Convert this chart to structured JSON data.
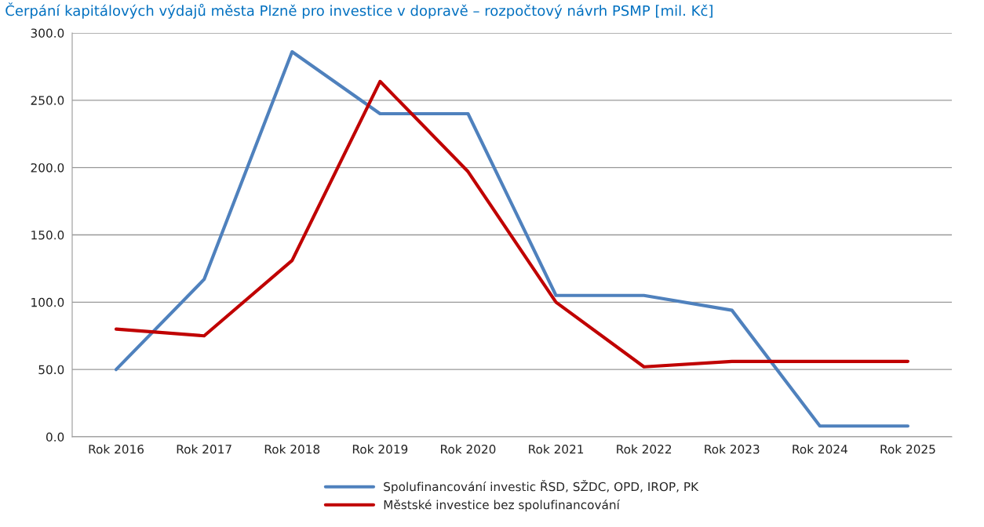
{
  "chart_data": {
    "type": "line",
    "title": "Čerpání kapitálových výdajů města Plzně pro investice v dopravě – rozpočtový návrh PSMP [mil. Kč]",
    "categories": [
      "Rok 2016",
      "Rok 2017",
      "Rok 2018",
      "Rok 2019",
      "Rok 2020",
      "Rok 2021",
      "Rok 2022",
      "Rok 2023",
      "Rok 2024",
      "Rok 2025"
    ],
    "series": [
      {
        "name": "Spolufinancování investic ŘSD, SŽDC, OPD, IROP, PK",
        "color": "#4f81bd",
        "values": [
          50,
          117,
          286,
          240,
          240,
          105,
          105,
          94,
          8,
          8
        ]
      },
      {
        "name": "Městské investice bez spolufinancování",
        "color": "#c00000",
        "values": [
          80,
          75,
          131,
          264,
          197,
          100,
          52,
          56,
          56,
          56
        ]
      }
    ],
    "ylim": [
      0,
      300
    ],
    "yticks": [
      {
        "value": 0,
        "label": "0.0"
      },
      {
        "value": 50,
        "label": "50.0"
      },
      {
        "value": 100,
        "label": "100.0"
      },
      {
        "value": 150,
        "label": "150.0"
      },
      {
        "value": 200,
        "label": "200.0"
      },
      {
        "value": 250,
        "label": "250.0"
      },
      {
        "value": 300,
        "label": "300.0"
      }
    ],
    "grid": "y",
    "legend": "bottom",
    "marker": "none",
    "line_style": "solid"
  }
}
